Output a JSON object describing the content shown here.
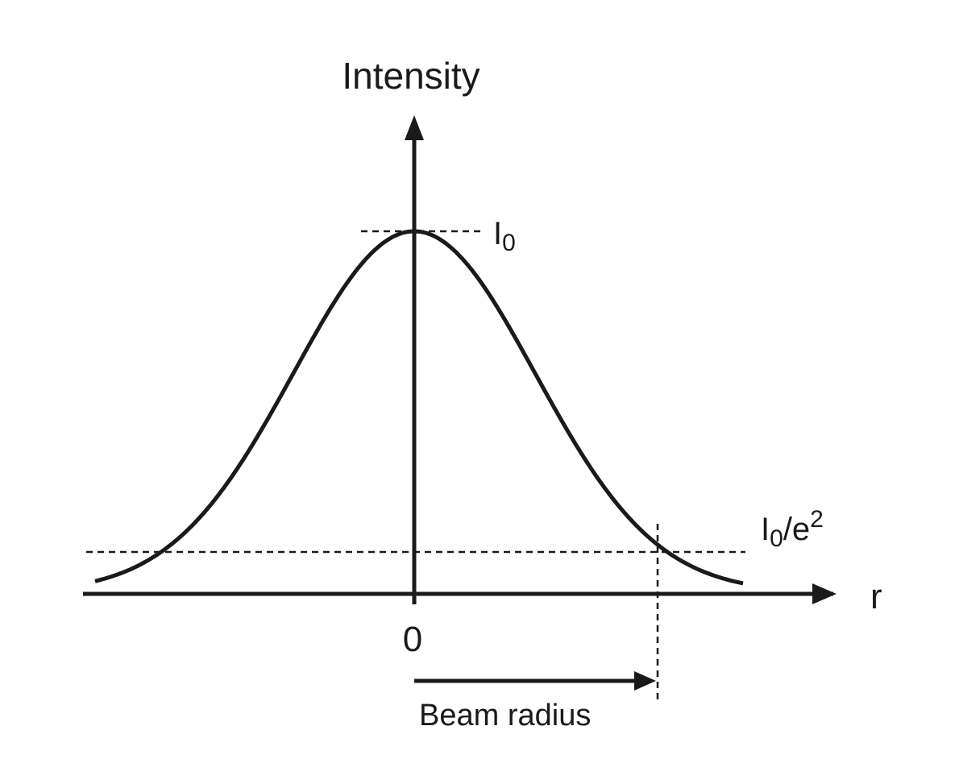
{
  "diagram": {
    "y_axis_label": "Intensity",
    "x_axis_label": "r",
    "origin_label": "0",
    "peak_level": {
      "symbol": "I",
      "subscript": "0"
    },
    "threshold_level": {
      "symbol": "I",
      "subscript": "0",
      "suffix": "/e",
      "superscript": "2"
    },
    "beam_radius_label": "Beam radius"
  },
  "colors": {
    "line": "#1a1a1a",
    "background": "#ffffff"
  }
}
